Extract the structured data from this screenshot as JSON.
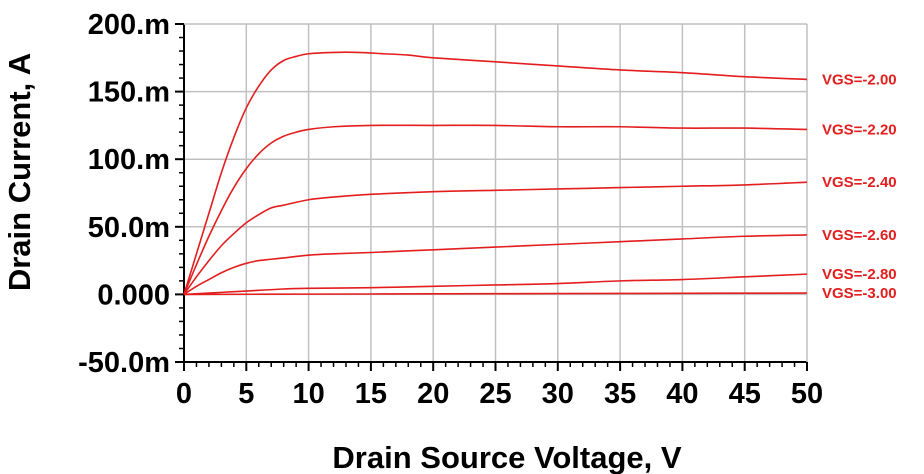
{
  "chart_data": {
    "type": "line",
    "xlabel": "Drain Source Voltage, V",
    "ylabel": "Drain Current, A",
    "xlim": [
      0,
      50
    ],
    "ylim": [
      -0.05,
      0.2
    ],
    "x_ticks": [
      0,
      5,
      10,
      15,
      20,
      25,
      30,
      35,
      40,
      45,
      50
    ],
    "x_tick_labels": [
      "0",
      "5",
      "10",
      "15",
      "20",
      "25",
      "30",
      "35",
      "40",
      "45",
      "50"
    ],
    "y_ticks": [
      -0.05,
      0,
      0.05,
      0.1,
      0.15,
      0.2
    ],
    "y_tick_labels": [
      "-50.0m",
      "0.000",
      "50.0m",
      "100.m",
      "150.m",
      "200.m"
    ],
    "grid": true,
    "line_color": "#e31e1e",
    "series": [
      {
        "name": "VGS=-2.00",
        "x": [
          0,
          1,
          2,
          3,
          4,
          5,
          6,
          7,
          8,
          9,
          10,
          12,
          14,
          16,
          18,
          20,
          25,
          30,
          35,
          40,
          45,
          50
        ],
        "y": [
          0,
          0.03,
          0.06,
          0.09,
          0.116,
          0.138,
          0.154,
          0.166,
          0.173,
          0.176,
          0.178,
          0.179,
          0.179,
          0.178,
          0.177,
          0.175,
          0.172,
          0.169,
          0.166,
          0.164,
          0.161,
          0.159
        ]
      },
      {
        "name": "VGS=-2.20",
        "x": [
          0,
          1,
          2,
          3,
          4,
          5,
          6,
          7,
          8,
          9,
          10,
          12,
          15,
          20,
          25,
          30,
          35,
          40,
          45,
          50
        ],
        "y": [
          0,
          0.022,
          0.043,
          0.062,
          0.079,
          0.093,
          0.104,
          0.112,
          0.117,
          0.12,
          0.122,
          0.124,
          0.125,
          0.125,
          0.125,
          0.124,
          0.124,
          0.123,
          0.123,
          0.122
        ]
      },
      {
        "name": "VGS=-2.40",
        "x": [
          0,
          1,
          2,
          3,
          4,
          5,
          6,
          7,
          8,
          10,
          12,
          15,
          20,
          25,
          30,
          35,
          40,
          45,
          50
        ],
        "y": [
          0,
          0.013,
          0.025,
          0.036,
          0.045,
          0.053,
          0.059,
          0.064,
          0.066,
          0.07,
          0.072,
          0.074,
          0.076,
          0.077,
          0.078,
          0.079,
          0.08,
          0.081,
          0.083
        ]
      },
      {
        "name": "VGS=-2.60",
        "x": [
          0,
          1,
          2,
          3,
          4,
          5,
          6,
          7,
          8,
          10,
          12,
          15,
          20,
          25,
          30,
          35,
          40,
          45,
          50
        ],
        "y": [
          0,
          0.006,
          0.011,
          0.016,
          0.02,
          0.023,
          0.025,
          0.026,
          0.027,
          0.029,
          0.03,
          0.031,
          0.033,
          0.035,
          0.037,
          0.039,
          0.041,
          0.043,
          0.044
        ]
      },
      {
        "name": "VGS=-2.80",
        "x": [
          0,
          2,
          4,
          6,
          8,
          10,
          15,
          20,
          25,
          30,
          35,
          40,
          45,
          50
        ],
        "y": [
          0,
          0.001,
          0.002,
          0.003,
          0.004,
          0.0045,
          0.005,
          0.006,
          0.007,
          0.008,
          0.01,
          0.011,
          0.013,
          0.015
        ]
      },
      {
        "name": "VGS=-3.00",
        "x": [
          0,
          10,
          20,
          30,
          40,
          50
        ],
        "y": [
          0,
          0.0002,
          0.0004,
          0.0006,
          0.0008,
          0.001
        ]
      }
    ]
  }
}
